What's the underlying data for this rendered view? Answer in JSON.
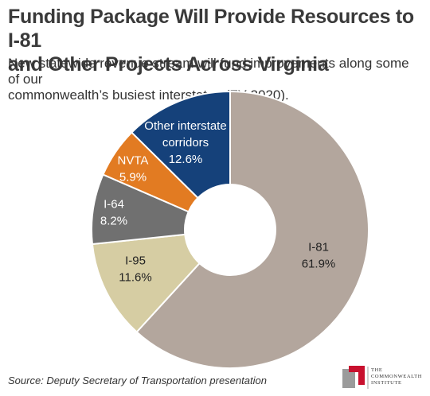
{
  "title_line1": "Funding Package Will Provide Resources to I-81",
  "title_line2": "and Other Projects Across Virginia",
  "subtitle_line1": "New statewide revenue stream will fund improvements along some of our",
  "subtitle_line2": "commonwealth’s busiest interstates (FY 2020).",
  "source": "Source: Deputy Secretary of Transportation presentation",
  "logo": {
    "line1": "THE",
    "line2": "COMMONWEALTH",
    "line3": "INSTITUTE"
  },
  "chart_data": {
    "type": "pie",
    "variant": "donut",
    "start_angle_deg": 0,
    "direction": "clockwise",
    "slices": [
      {
        "label": "I-81",
        "value": 61.9,
        "value_label": "61.9%",
        "color": "#b3a69d",
        "text_color": "#222222"
      },
      {
        "label": "I-95",
        "value": 11.6,
        "value_label": "11.6%",
        "color": "#d6cda3",
        "text_color": "#222222"
      },
      {
        "label": "I-64",
        "value": 8.2,
        "value_label": "8.2%",
        "color": "#707070",
        "text_color": "#ffffff"
      },
      {
        "label": "NVTA",
        "value": 5.9,
        "value_label": "5.9%",
        "color": "#e27b22",
        "text_color": "#ffffff"
      },
      {
        "label": "Other interstate corridors",
        "label_lines": [
          "Other interstate",
          "corridors"
        ],
        "value": 12.6,
        "value_label": "12.6%",
        "color": "#15417a",
        "text_color": "#ffffff"
      }
    ]
  }
}
